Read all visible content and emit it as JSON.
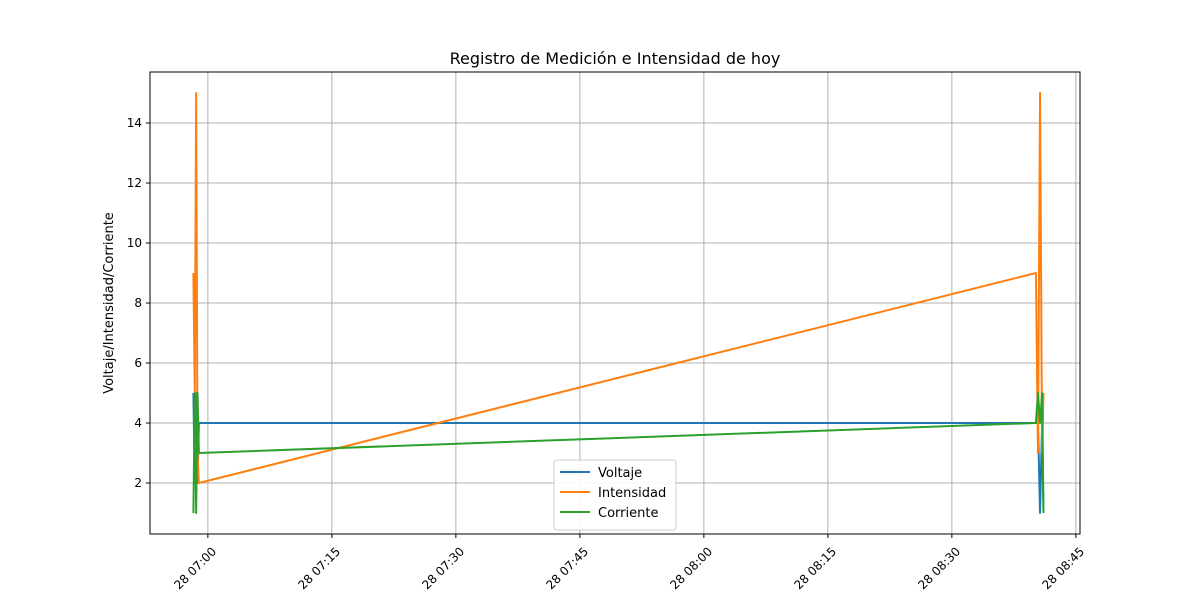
{
  "chart_data": {
    "type": "line",
    "title": "Registro de Medición e Intensidad de hoy",
    "xlabel": "",
    "ylabel": "Voltaje/Intensidad/Corriente",
    "grid": true,
    "legend_placement": "lower-center",
    "xlim": [
      "28 06:53:00",
      "28 08:45:30"
    ],
    "ylim": [
      0.3,
      15.7
    ],
    "x_ticks": [
      "28 07:00",
      "28 07:15",
      "28 07:30",
      "28 07:45",
      "28 08:00",
      "28 08:15",
      "28 08:30",
      "28 08:45"
    ],
    "y_ticks": [
      2,
      4,
      6,
      8,
      10,
      12,
      14
    ],
    "series": [
      {
        "name": "Voltaje",
        "color": "#1f77b4",
        "x": [
          "28 06:58:15",
          "28 06:58:25",
          "28 06:58:35",
          "28 06:58:45",
          "28 06:58:55",
          "28 08:40:10",
          "28 08:40:25",
          "28 08:40:40",
          "28 08:40:55",
          "28 08:41:05"
        ],
        "values": [
          5,
          2,
          5,
          2,
          4,
          4,
          4,
          1,
          4,
          1
        ]
      },
      {
        "name": "Intensidad",
        "color": "#ff7f0e",
        "x": [
          "28 06:58:15",
          "28 06:58:25",
          "28 06:58:35",
          "28 06:58:45",
          "28 06:58:55",
          "28 08:40:10",
          "28 08:40:25",
          "28 08:40:40",
          "28 08:40:55",
          "28 08:41:05"
        ],
        "values": [
          9,
          5,
          15,
          3,
          2,
          9,
          3,
          15,
          3,
          5
        ]
      },
      {
        "name": "Corriente",
        "color": "#2ca02c",
        "x": [
          "28 06:58:15",
          "28 06:58:25",
          "28 06:58:35",
          "28 06:58:45",
          "28 06:58:55",
          "28 08:40:10",
          "28 08:40:25",
          "28 08:40:40",
          "28 08:40:55",
          "28 08:41:05"
        ],
        "values": [
          1,
          5,
          1,
          5,
          3,
          4,
          5,
          4,
          5,
          1
        ]
      }
    ]
  }
}
